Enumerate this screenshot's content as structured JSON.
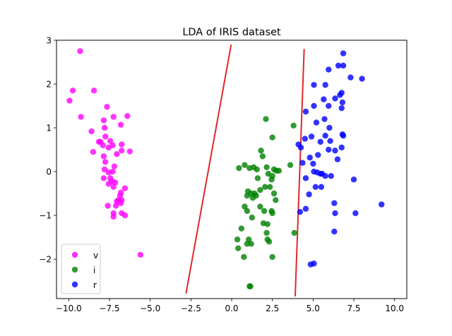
{
  "chart_data": {
    "type": "scatter",
    "title": "LDA of IRIS dataset",
    "xlabel": "",
    "ylabel": "",
    "xlim": [
      -10.75,
      10.75
    ],
    "ylim": [
      -2.9,
      3.0
    ],
    "xticks": [
      -10,
      -7.5,
      -5,
      -2.5,
      0,
      2.5,
      5,
      7.5,
      10
    ],
    "xtick_labels": [
      "−10.0",
      "−7.5",
      "−5.0",
      "−2.5",
      "0.0",
      "2.5",
      "5.0",
      "7.5",
      "10.0"
    ],
    "yticks": [
      -2,
      -1,
      0,
      1,
      2,
      3
    ],
    "ytick_labels": [
      "−2",
      "−1",
      "0",
      "1",
      "2",
      "3"
    ],
    "grid": false,
    "legend_position": "lower-left",
    "series": [
      {
        "name": "v",
        "color": "#ff00ff",
        "points": [
          [
            -9.3,
            2.75
          ],
          [
            -9.75,
            1.85
          ],
          [
            -8.45,
            1.85
          ],
          [
            -9.95,
            1.62
          ],
          [
            -9.25,
            1.25
          ],
          [
            -7.65,
            1.48
          ],
          [
            -7.25,
            1.25
          ],
          [
            -7.85,
            1.17
          ],
          [
            -6.4,
            1.27
          ],
          [
            -6.8,
            1.07
          ],
          [
            -8.6,
            0.92
          ],
          [
            -7.8,
            1.0
          ],
          [
            -8.15,
            0.68
          ],
          [
            -8.05,
            0.68
          ],
          [
            -7.75,
            0.8
          ],
          [
            -7.45,
            0.7
          ],
          [
            -7.9,
            0.6
          ],
          [
            -7.55,
            0.55
          ],
          [
            -7.3,
            0.6
          ],
          [
            -6.75,
            0.62
          ],
          [
            -8.5,
            0.45
          ],
          [
            -7.85,
            0.35
          ],
          [
            -7.05,
            0.4
          ],
          [
            -6.75,
            0.48
          ],
          [
            -6.25,
            0.46
          ],
          [
            -7.75,
            0.22
          ],
          [
            -7.8,
            0.05
          ],
          [
            -7.55,
            -0.02
          ],
          [
            -7.3,
            0.0
          ],
          [
            -7.2,
            0.12
          ],
          [
            -7.45,
            -0.15
          ],
          [
            -7.85,
            -0.15
          ],
          [
            -7.35,
            -0.22
          ],
          [
            -7.15,
            -0.25
          ],
          [
            -7.55,
            -0.28
          ],
          [
            -7.25,
            -0.35
          ],
          [
            -6.55,
            -0.38
          ],
          [
            -6.8,
            -0.48
          ],
          [
            -6.85,
            -0.55
          ],
          [
            -6.95,
            -0.65
          ],
          [
            -6.75,
            -0.65
          ],
          [
            -7.05,
            -0.68
          ],
          [
            -6.8,
            -0.72
          ],
          [
            -7.1,
            -0.78
          ],
          [
            -7.6,
            -0.78
          ],
          [
            -7.25,
            -0.95
          ],
          [
            -6.75,
            -0.95
          ],
          [
            -6.55,
            -1.0
          ],
          [
            -7.25,
            -1.03
          ],
          [
            -5.6,
            -1.9
          ]
        ]
      },
      {
        "name": "i",
        "color": "#008000",
        "points": [
          [
            2.1,
            1.2
          ],
          [
            3.8,
            1.05
          ],
          [
            1.8,
            0.48
          ],
          [
            2.5,
            0.78
          ],
          [
            0.8,
            0.15
          ],
          [
            1.35,
            0.1
          ],
          [
            1.1,
            0.08
          ],
          [
            1.9,
            0.35
          ],
          [
            2.15,
            0.1
          ],
          [
            2.6,
            0.05
          ],
          [
            2.75,
            0.02
          ],
          [
            2.9,
            0.02
          ],
          [
            3.6,
            0.15
          ],
          [
            0.45,
            0.08
          ],
          [
            1.55,
            0.05
          ],
          [
            2.25,
            -0.05
          ],
          [
            2.5,
            -0.1
          ],
          [
            1.6,
            -0.15
          ],
          [
            2.45,
            -0.18
          ],
          [
            1.0,
            -0.45
          ],
          [
            1.2,
            -0.5
          ],
          [
            1.4,
            -0.5
          ],
          [
            1.5,
            -0.55
          ],
          [
            0.95,
            -0.55
          ],
          [
            1.3,
            -0.6
          ],
          [
            2.05,
            -0.35
          ],
          [
            2.35,
            -0.35
          ],
          [
            1.75,
            -0.42
          ],
          [
            2.6,
            -0.5
          ],
          [
            2.7,
            -0.65
          ],
          [
            0.8,
            -0.8
          ],
          [
            1.75,
            -0.8
          ],
          [
            2.0,
            -0.9
          ],
          [
            2.45,
            -0.9
          ],
          [
            2.5,
            -0.95
          ],
          [
            0.95,
            -0.9
          ],
          [
            1.25,
            -1.05
          ],
          [
            1.95,
            -1.18
          ],
          [
            2.2,
            -1.2
          ],
          [
            0.6,
            -1.3
          ],
          [
            2.15,
            -1.4
          ],
          [
            3.85,
            -1.4
          ],
          [
            0.35,
            -1.55
          ],
          [
            1.05,
            -1.55
          ],
          [
            0.4,
            -1.75
          ],
          [
            0.95,
            -1.65
          ],
          [
            0.75,
            -1.95
          ],
          [
            2.2,
            -1.55
          ],
          [
            2.3,
            -1.6
          ],
          [
            1.2,
            -1.65
          ],
          [
            2.5,
            -1.95
          ],
          [
            1.1,
            -2.62
          ],
          [
            1.15,
            -2.62
          ]
        ]
      },
      {
        "name": "r",
        "color": "#0000ff",
        "points": [
          [
            6.85,
            2.7
          ],
          [
            6.55,
            2.42
          ],
          [
            6.85,
            2.42
          ],
          [
            5.95,
            2.33
          ],
          [
            7.3,
            2.15
          ],
          [
            8.0,
            2.12
          ],
          [
            5.05,
            1.98
          ],
          [
            5.75,
            1.98
          ],
          [
            6.75,
            1.8
          ],
          [
            6.65,
            1.75
          ],
          [
            6.35,
            1.67
          ],
          [
            5.65,
            1.65
          ],
          [
            5.05,
            1.5
          ],
          [
            5.95,
            1.5
          ],
          [
            6.8,
            1.58
          ],
          [
            6.75,
            1.45
          ],
          [
            4.55,
            1.37
          ],
          [
            5.2,
            1.12
          ],
          [
            5.7,
            1.2
          ],
          [
            6.0,
            1.0
          ],
          [
            4.9,
            0.8
          ],
          [
            5.75,
            0.82
          ],
          [
            6.8,
            0.85
          ],
          [
            6.85,
            0.82
          ],
          [
            4.5,
            0.75
          ],
          [
            5.45,
            0.68
          ],
          [
            6.05,
            0.7
          ],
          [
            4.1,
            0.62
          ],
          [
            4.25,
            0.55
          ],
          [
            5.95,
            0.5
          ],
          [
            6.35,
            0.48
          ],
          [
            6.75,
            0.55
          ],
          [
            4.8,
            0.32
          ],
          [
            5.3,
            0.38
          ],
          [
            4.35,
            0.2
          ],
          [
            5.0,
            0.18
          ],
          [
            6.5,
            0.28
          ],
          [
            5.05,
            0.0
          ],
          [
            5.25,
            -0.02
          ],
          [
            5.45,
            -0.05
          ],
          [
            5.55,
            -0.05
          ],
          [
            5.75,
            -0.1
          ],
          [
            6.1,
            -0.1
          ],
          [
            7.5,
            -0.18
          ],
          [
            4.55,
            -0.15
          ],
          [
            5.15,
            -0.35
          ],
          [
            5.5,
            -0.35
          ],
          [
            4.75,
            -0.52
          ],
          [
            6.3,
            -0.72
          ],
          [
            9.2,
            -0.75
          ],
          [
            4.55,
            -0.85
          ],
          [
            4.2,
            -0.92
          ],
          [
            6.35,
            -0.95
          ],
          [
            7.6,
            -0.95
          ],
          [
            6.3,
            -1.37
          ],
          [
            4.85,
            -2.12
          ],
          [
            5.05,
            -2.1
          ]
        ]
      }
    ],
    "boundaries": [
      {
        "color": "#e0282c",
        "points": [
          [
            -2.8,
            -2.78
          ],
          [
            -0.03,
            2.9
          ]
        ]
      },
      {
        "color": "#e0282c",
        "points": [
          [
            3.9,
            -2.85
          ],
          [
            4.45,
            2.8
          ]
        ]
      }
    ],
    "legend": [
      {
        "label": "v",
        "color": "#ff00ff"
      },
      {
        "label": "i",
        "color": "#008000"
      },
      {
        "label": "r",
        "color": "#0000ff"
      }
    ]
  }
}
